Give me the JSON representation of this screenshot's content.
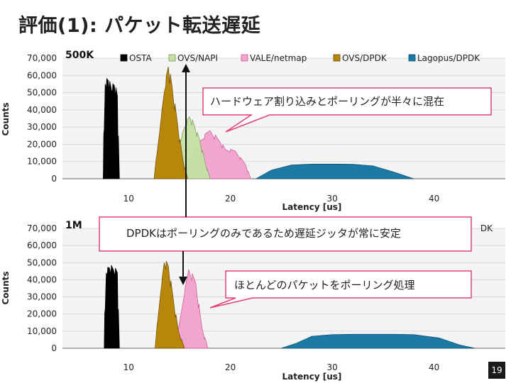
{
  "slide": {
    "title": "評価(1): パケット転送遅延",
    "page_number": "19"
  },
  "legend": [
    "OSTA",
    "OVS/NAPI",
    "VALE/netmap",
    "OVS/DPDK",
    "Lagopus/DPDK"
  ],
  "legend_visible_bottom": "DK",
  "callouts": [
    "ハードウェア割り込みとポーリングが半々に混在",
    "DPDKはポーリングのみであるため遅延ジッタが常に安定",
    "ほとんどのパケットをポーリング処理"
  ],
  "colors": {
    "OSTA": "#000000",
    "OVS/NAPI": "#c4e0a4",
    "VALE/netmap": "#f2a6cf",
    "OVS/DPDK": "#b8860b",
    "Lagopus/DPDK": "#1b79a4",
    "callout_border": "#e0407a"
  },
  "chart_data": [
    {
      "type": "area",
      "panel_label": "500K",
      "xlabel": "Latency [us]",
      "ylabel": "Counts",
      "ylim": [
        0,
        70000
      ],
      "yticks": [
        "70,000",
        "60,000",
        "50,000",
        "40,000",
        "30,000",
        "20,000",
        "10,000",
        "0"
      ],
      "xticks": [
        "10",
        "20",
        "30",
        "40"
      ],
      "xlim": [
        3.5,
        47
      ],
      "grid": true,
      "legend_position": "top",
      "series": [
        {
          "name": "OSTA",
          "x": [
            7.5,
            7.7,
            8.0,
            8.3,
            8.6,
            8.9,
            9.1
          ],
          "y": [
            0,
            55000,
            57000,
            52000,
            54000,
            48000,
            0
          ]
        },
        {
          "name": "OVS/NAPI",
          "x": [
            14.5,
            15.0,
            15.5,
            16.0,
            16.5,
            17.0,
            17.5,
            18.0
          ],
          "y": [
            0,
            20000,
            30000,
            36000,
            30000,
            22000,
            10000,
            0
          ]
        },
        {
          "name": "VALE/netmap",
          "x": [
            15.5,
            16.0,
            17.0,
            18.0,
            19.0,
            19.5,
            20.5,
            21.5,
            22.0
          ],
          "y": [
            0,
            12000,
            22000,
            28000,
            21000,
            17000,
            16000,
            8000,
            0
          ]
        },
        {
          "name": "OVS/DPDK",
          "x": [
            12.5,
            13.0,
            13.5,
            13.9,
            14.3,
            14.8,
            15.3,
            15.8
          ],
          "y": [
            0,
            25000,
            50000,
            65000,
            52000,
            32000,
            12000,
            0
          ]
        },
        {
          "name": "Lagopus/DPDK",
          "x": [
            22.5,
            24.0,
            26.0,
            28.0,
            30.0,
            31.0,
            32.0,
            34.0,
            36.0,
            38.0
          ],
          "y": [
            0,
            5000,
            8000,
            8500,
            8500,
            8500,
            8400,
            7500,
            4000,
            0
          ]
        }
      ]
    },
    {
      "type": "area",
      "panel_label": "1M",
      "xlabel": "Latency [us]",
      "ylabel": "Counts",
      "ylim": [
        0,
        70000
      ],
      "yticks": [
        "70,000",
        "60,000",
        "50,000",
        "40,000",
        "30,000",
        "20,000",
        "10,000",
        "0"
      ],
      "xticks": [
        "10",
        "20",
        "30",
        "40"
      ],
      "xlim": [
        3.5,
        47
      ],
      "grid": true,
      "series": [
        {
          "name": "OSTA",
          "x": [
            7.6,
            7.8,
            8.1,
            8.5,
            8.9,
            9.1
          ],
          "y": [
            0,
            44000,
            47000,
            46000,
            44000,
            0
          ]
        },
        {
          "name": "VALE/netmap",
          "x": [
            14.6,
            15.2,
            15.9,
            16.6,
            17.2,
            17.8
          ],
          "y": [
            0,
            22000,
            46000,
            38000,
            12000,
            0
          ]
        },
        {
          "name": "OVS/DPDK",
          "x": [
            12.6,
            13.1,
            13.5,
            13.9,
            14.4,
            14.9,
            15.5
          ],
          "y": [
            0,
            30000,
            50000,
            48000,
            28000,
            10000,
            0
          ]
        },
        {
          "name": "Lagopus/DPDK",
          "x": [
            25.0,
            26.5,
            28.0,
            30.0,
            32.0,
            34.0,
            36.0,
            38.0,
            40.5,
            42.5,
            44.0
          ],
          "y": [
            0,
            3000,
            7000,
            8000,
            8200,
            8200,
            8200,
            8000,
            6000,
            2000,
            0
          ]
        }
      ]
    }
  ]
}
